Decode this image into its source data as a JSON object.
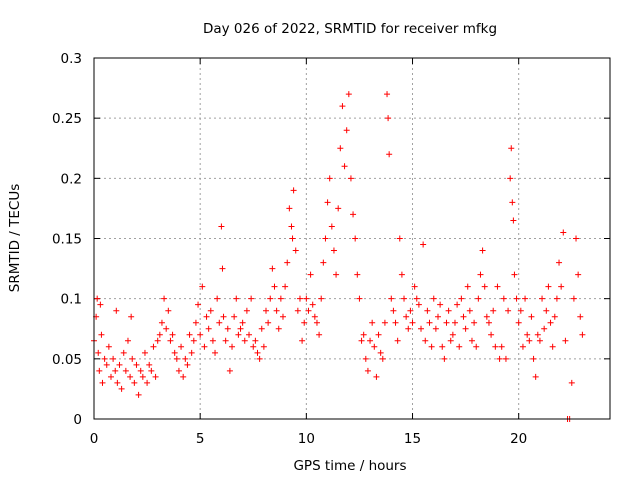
{
  "chart_data": {
    "type": "scatter",
    "title": "Day 026 of 2022, SRMTID for receiver mfkg",
    "xlabel": "GPS time / hours",
    "ylabel": "SRMTID / TECUs",
    "xlim": [
      0,
      24.3
    ],
    "ylim": [
      0,
      0.3
    ],
    "x_ticks": [
      0,
      5,
      10,
      15,
      20
    ],
    "y_ticks": [
      0,
      0.05,
      0.1,
      0.15,
      0.2,
      0.25,
      0.3
    ],
    "grid": true,
    "marker": "+",
    "color": "#ff0000",
    "series": [
      {
        "name": "SRMTID",
        "points": [
          [
            0.0,
            0.065
          ],
          [
            0.1,
            0.085
          ],
          [
            0.15,
            0.1
          ],
          [
            0.2,
            0.055
          ],
          [
            0.25,
            0.04
          ],
          [
            0.3,
            0.095
          ],
          [
            0.35,
            0.07
          ],
          [
            0.4,
            0.03
          ],
          [
            0.5,
            0.05
          ],
          [
            0.6,
            0.045
          ],
          [
            0.7,
            0.06
          ],
          [
            0.8,
            0.035
          ],
          [
            0.9,
            0.05
          ],
          [
            1.0,
            0.04
          ],
          [
            1.05,
            0.09
          ],
          [
            1.1,
            0.03
          ],
          [
            1.2,
            0.045
          ],
          [
            1.3,
            0.025
          ],
          [
            1.4,
            0.055
          ],
          [
            1.5,
            0.04
          ],
          [
            1.6,
            0.065
          ],
          [
            1.7,
            0.035
          ],
          [
            1.75,
            0.085
          ],
          [
            1.8,
            0.05
          ],
          [
            1.9,
            0.03
          ],
          [
            2.0,
            0.045
          ],
          [
            2.1,
            0.02
          ],
          [
            2.2,
            0.04
          ],
          [
            2.3,
            0.035
          ],
          [
            2.4,
            0.055
          ],
          [
            2.5,
            0.03
          ],
          [
            2.6,
            0.045
          ],
          [
            2.7,
            0.04
          ],
          [
            2.8,
            0.06
          ],
          [
            2.9,
            0.035
          ],
          [
            3.0,
            0.065
          ],
          [
            3.1,
            0.07
          ],
          [
            3.2,
            0.08
          ],
          [
            3.3,
            0.1
          ],
          [
            3.4,
            0.075
          ],
          [
            3.5,
            0.09
          ],
          [
            3.6,
            0.065
          ],
          [
            3.7,
            0.07
          ],
          [
            3.8,
            0.055
          ],
          [
            3.9,
            0.05
          ],
          [
            4.0,
            0.04
          ],
          [
            4.1,
            0.06
          ],
          [
            4.2,
            0.035
          ],
          [
            4.3,
            0.05
          ],
          [
            4.4,
            0.045
          ],
          [
            4.5,
            0.07
          ],
          [
            4.6,
            0.055
          ],
          [
            4.7,
            0.065
          ],
          [
            4.8,
            0.08
          ],
          [
            4.9,
            0.095
          ],
          [
            5.0,
            0.07
          ],
          [
            5.1,
            0.11
          ],
          [
            5.2,
            0.06
          ],
          [
            5.3,
            0.085
          ],
          [
            5.4,
            0.075
          ],
          [
            5.5,
            0.09
          ],
          [
            5.6,
            0.065
          ],
          [
            5.7,
            0.055
          ],
          [
            5.8,
            0.1
          ],
          [
            5.9,
            0.08
          ],
          [
            6.0,
            0.16
          ],
          [
            6.05,
            0.125
          ],
          [
            6.1,
            0.085
          ],
          [
            6.2,
            0.065
          ],
          [
            6.3,
            0.075
          ],
          [
            6.4,
            0.04
          ],
          [
            6.5,
            0.06
          ],
          [
            6.6,
            0.085
          ],
          [
            6.7,
            0.1
          ],
          [
            6.8,
            0.07
          ],
          [
            6.9,
            0.075
          ],
          [
            7.0,
            0.08
          ],
          [
            7.1,
            0.065
          ],
          [
            7.2,
            0.09
          ],
          [
            7.3,
            0.07
          ],
          [
            7.4,
            0.1
          ],
          [
            7.5,
            0.06
          ],
          [
            7.6,
            0.065
          ],
          [
            7.7,
            0.055
          ],
          [
            7.8,
            0.05
          ],
          [
            7.9,
            0.075
          ],
          [
            8.0,
            0.06
          ],
          [
            8.1,
            0.09
          ],
          [
            8.2,
            0.08
          ],
          [
            8.3,
            0.1
          ],
          [
            8.4,
            0.125
          ],
          [
            8.5,
            0.11
          ],
          [
            8.6,
            0.09
          ],
          [
            8.7,
            0.075
          ],
          [
            8.8,
            0.1
          ],
          [
            8.9,
            0.085
          ],
          [
            9.0,
            0.11
          ],
          [
            9.1,
            0.13
          ],
          [
            9.2,
            0.175
          ],
          [
            9.3,
            0.16
          ],
          [
            9.35,
            0.15
          ],
          [
            9.4,
            0.19
          ],
          [
            9.5,
            0.14
          ],
          [
            9.6,
            0.09
          ],
          [
            9.7,
            0.1
          ],
          [
            9.8,
            0.065
          ],
          [
            9.9,
            0.08
          ],
          [
            10.0,
            0.1
          ],
          [
            10.1,
            0.09
          ],
          [
            10.2,
            0.12
          ],
          [
            10.3,
            0.095
          ],
          [
            10.4,
            0.085
          ],
          [
            10.5,
            0.08
          ],
          [
            10.6,
            0.07
          ],
          [
            10.7,
            0.1
          ],
          [
            10.8,
            0.13
          ],
          [
            10.9,
            0.15
          ],
          [
            11.0,
            0.18
          ],
          [
            11.1,
            0.2
          ],
          [
            11.2,
            0.16
          ],
          [
            11.3,
            0.14
          ],
          [
            11.4,
            0.12
          ],
          [
            11.5,
            0.175
          ],
          [
            11.6,
            0.225
          ],
          [
            11.7,
            0.26
          ],
          [
            11.8,
            0.21
          ],
          [
            11.9,
            0.24
          ],
          [
            12.0,
            0.27
          ],
          [
            12.1,
            0.2
          ],
          [
            12.2,
            0.17
          ],
          [
            12.3,
            0.15
          ],
          [
            12.4,
            0.12
          ],
          [
            12.5,
            0.1
          ],
          [
            12.6,
            0.065
          ],
          [
            12.7,
            0.07
          ],
          [
            12.8,
            0.05
          ],
          [
            12.9,
            0.04
          ],
          [
            13.0,
            0.065
          ],
          [
            13.1,
            0.08
          ],
          [
            13.2,
            0.06
          ],
          [
            13.3,
            0.035
          ],
          [
            13.4,
            0.07
          ],
          [
            13.5,
            0.055
          ],
          [
            13.6,
            0.05
          ],
          [
            13.7,
            0.08
          ],
          [
            13.8,
            0.27
          ],
          [
            13.85,
            0.25
          ],
          [
            13.9,
            0.22
          ],
          [
            14.0,
            0.1
          ],
          [
            14.1,
            0.09
          ],
          [
            14.2,
            0.08
          ],
          [
            14.3,
            0.065
          ],
          [
            14.4,
            0.15
          ],
          [
            14.5,
            0.12
          ],
          [
            14.6,
            0.1
          ],
          [
            14.7,
            0.085
          ],
          [
            14.8,
            0.075
          ],
          [
            14.9,
            0.09
          ],
          [
            15.0,
            0.08
          ],
          [
            15.1,
            0.11
          ],
          [
            15.2,
            0.1
          ],
          [
            15.3,
            0.095
          ],
          [
            15.4,
            0.075
          ],
          [
            15.5,
            0.145
          ],
          [
            15.6,
            0.065
          ],
          [
            15.7,
            0.09
          ],
          [
            15.8,
            0.08
          ],
          [
            15.9,
            0.06
          ],
          [
            16.0,
            0.1
          ],
          [
            16.1,
            0.075
          ],
          [
            16.2,
            0.085
          ],
          [
            16.3,
            0.095
          ],
          [
            16.4,
            0.06
          ],
          [
            16.5,
            0.05
          ],
          [
            16.6,
            0.08
          ],
          [
            16.7,
            0.09
          ],
          [
            16.8,
            0.065
          ],
          [
            16.9,
            0.07
          ],
          [
            17.0,
            0.08
          ],
          [
            17.1,
            0.095
          ],
          [
            17.2,
            0.06
          ],
          [
            17.3,
            0.1
          ],
          [
            17.4,
            0.085
          ],
          [
            17.5,
            0.075
          ],
          [
            17.6,
            0.11
          ],
          [
            17.7,
            0.09
          ],
          [
            17.8,
            0.065
          ],
          [
            17.9,
            0.08
          ],
          [
            18.0,
            0.06
          ],
          [
            18.1,
            0.1
          ],
          [
            18.2,
            0.12
          ],
          [
            18.3,
            0.14
          ],
          [
            18.4,
            0.11
          ],
          [
            18.5,
            0.085
          ],
          [
            18.6,
            0.08
          ],
          [
            18.7,
            0.07
          ],
          [
            18.8,
            0.09
          ],
          [
            18.9,
            0.06
          ],
          [
            19.0,
            0.11
          ],
          [
            19.1,
            0.05
          ],
          [
            19.2,
            0.06
          ],
          [
            19.3,
            0.1
          ],
          [
            19.4,
            0.05
          ],
          [
            19.5,
            0.09
          ],
          [
            19.6,
            0.2
          ],
          [
            19.65,
            0.225
          ],
          [
            19.7,
            0.18
          ],
          [
            19.75,
            0.165
          ],
          [
            19.8,
            0.12
          ],
          [
            19.9,
            0.1
          ],
          [
            20.0,
            0.08
          ],
          [
            20.1,
            0.09
          ],
          [
            20.2,
            0.06
          ],
          [
            20.3,
            0.1
          ],
          [
            20.4,
            0.07
          ],
          [
            20.5,
            0.065
          ],
          [
            20.6,
            0.085
          ],
          [
            20.7,
            0.05
          ],
          [
            20.8,
            0.035
          ],
          [
            20.9,
            0.07
          ],
          [
            21.0,
            0.065
          ],
          [
            21.1,
            0.1
          ],
          [
            21.2,
            0.075
          ],
          [
            21.3,
            0.09
          ],
          [
            21.4,
            0.11
          ],
          [
            21.5,
            0.08
          ],
          [
            21.6,
            0.06
          ],
          [
            21.7,
            0.085
          ],
          [
            21.8,
            0.1
          ],
          [
            21.9,
            0.13
          ],
          [
            22.0,
            0.11
          ],
          [
            22.1,
            0.155
          ],
          [
            22.2,
            0.065
          ],
          [
            22.3,
            0.0
          ],
          [
            22.4,
            0.0
          ],
          [
            22.5,
            0.03
          ],
          [
            22.6,
            0.1
          ],
          [
            22.7,
            0.15
          ],
          [
            22.8,
            0.12
          ],
          [
            22.9,
            0.085
          ],
          [
            23.0,
            0.07
          ]
        ]
      }
    ]
  }
}
